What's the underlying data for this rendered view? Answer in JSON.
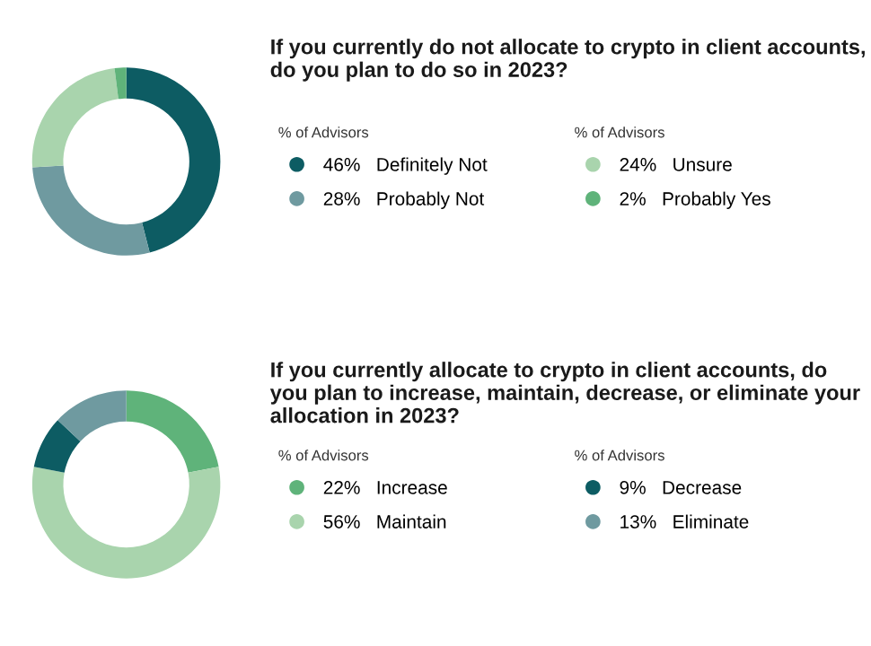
{
  "chart_data": [
    {
      "type": "donut",
      "title": "If you currently do not allocate to crypto in client accounts, do you plan to do so in 2023?",
      "legend_title": "% of Advisors",
      "legend": "right",
      "categories": [
        "Definitely Not",
        "Probably Not",
        "Unsure",
        "Probably Yes"
      ],
      "values": [
        46,
        28,
        24,
        2
      ],
      "value_labels": [
        "46%",
        "28%",
        "24%",
        "2%"
      ],
      "colors": [
        "#0d5c63",
        "#6f9aa0",
        "#a9d4ad",
        "#5fb37a"
      ]
    },
    {
      "type": "donut",
      "title": "If you currently allocate to crypto in client accounts, do you plan to increase, maintain, decrease, or eliminate your allocation in 2023?",
      "legend_title": "% of Advisors",
      "legend": "right",
      "categories": [
        "Increase",
        "Maintain",
        "Decrease",
        "Eliminate"
      ],
      "values": [
        22,
        56,
        9,
        13
      ],
      "value_labels": [
        "22%",
        "56%",
        "9%",
        "13%"
      ],
      "colors": [
        "#5fb37a",
        "#a9d4ad",
        "#0d5c63",
        "#6f9aa0"
      ]
    }
  ]
}
